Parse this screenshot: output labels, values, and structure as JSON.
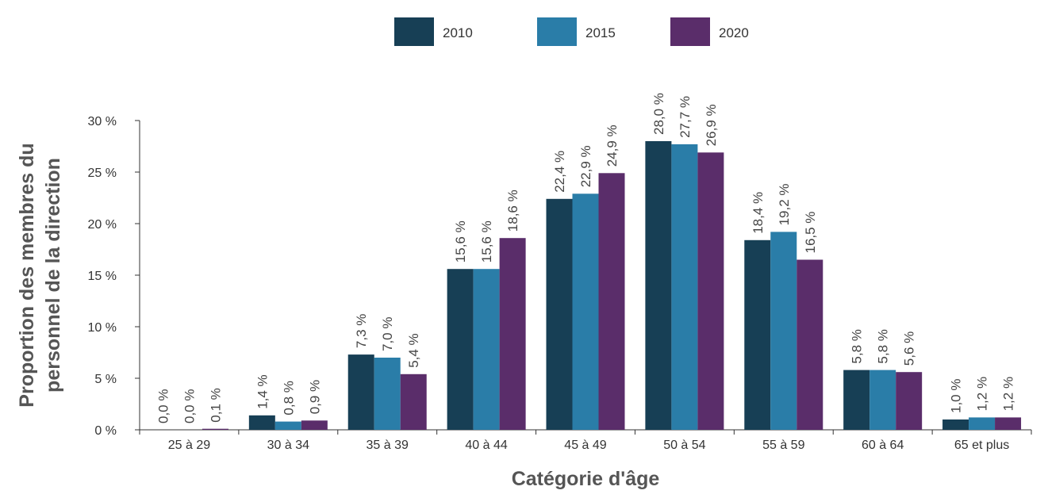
{
  "chart_data": {
    "type": "bar",
    "xlabel": "Catégorie d'âge",
    "ylabel_lines": [
      "Proportion des membres du",
      "personnel de la direction"
    ],
    "ylim": [
      0,
      30
    ],
    "yticks": [
      {
        "value": 0,
        "label": "0 %"
      },
      {
        "value": 5,
        "label": "5 %"
      },
      {
        "value": 10,
        "label": "10 %"
      },
      {
        "value": 15,
        "label": "15 %"
      },
      {
        "value": 20,
        "label": "20 %"
      },
      {
        "value": 25,
        "label": "25 %"
      },
      {
        "value": 30,
        "label": "30 %"
      }
    ],
    "categories": [
      "25 à 29",
      "30 à 34",
      "35 à 39",
      "40 à 44",
      "45 à 49",
      "50 à 54",
      "55 à 59",
      "60 à 64",
      "65 et plus"
    ],
    "series": [
      {
        "name": "2010",
        "color": "#173f55",
        "values": [
          0.0,
          1.4,
          7.3,
          15.6,
          22.4,
          28.0,
          18.4,
          5.8,
          1.0
        ],
        "labels": [
          "0,0 %",
          "1,4 %",
          "7,3 %",
          "15,6 %",
          "22,4 %",
          "28,0 %",
          "18,4 %",
          "5,8 %",
          "1,0 %"
        ]
      },
      {
        "name": "2015",
        "color": "#2a7da8",
        "values": [
          0.0,
          0.8,
          7.0,
          15.6,
          22.9,
          27.7,
          19.2,
          5.8,
          1.2
        ],
        "labels": [
          "0,0 %",
          "0,8 %",
          "7,0 %",
          "15,6 %",
          "22,9 %",
          "27,7 %",
          "19,2 %",
          "5,8 %",
          "1,2 %"
        ]
      },
      {
        "name": "2020",
        "color": "#5a2d6a",
        "values": [
          0.1,
          0.9,
          5.4,
          18.6,
          24.9,
          26.9,
          16.5,
          5.6,
          1.2
        ],
        "labels": [
          "0,1 %",
          "0,9 %",
          "5,4 %",
          "18,6 %",
          "24,9 %",
          "26,9 %",
          "16,5 %",
          "5,6 %",
          "1,2 %"
        ]
      }
    ],
    "legend_position": "top-center",
    "grid": false
  }
}
